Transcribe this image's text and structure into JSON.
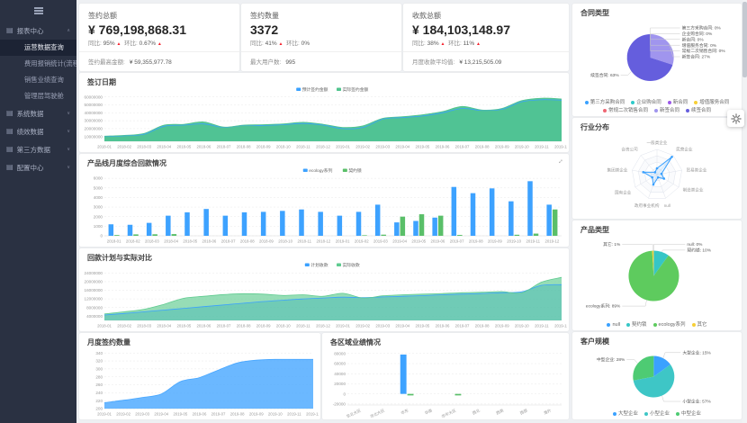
{
  "sidebar": {
    "items": [
      {
        "label": "报表中心",
        "expanded": true,
        "children": [
          {
            "label": "运营数据查询",
            "active": true
          },
          {
            "label": "费用报销统计(流程)",
            "active": false
          },
          {
            "label": "销售业绩查询",
            "active": false
          },
          {
            "label": "管理层驾驶舱",
            "active": false
          }
        ]
      },
      {
        "label": "系统数据",
        "expanded": false
      },
      {
        "label": "绩效数据",
        "expanded": false
      },
      {
        "label": "第三方数据",
        "expanded": false
      },
      {
        "label": "配置中心",
        "expanded": false
      }
    ]
  },
  "kpis": [
    {
      "title": "签约总额",
      "value": "¥ 769,198,868.31",
      "yoy_label": "同比:",
      "yoy": "95%",
      "yoy_arrow": "▲",
      "mom_label": "环比:",
      "mom": "0.67%",
      "mom_arrow": "▲",
      "footer_label": "签约最高金额:",
      "footer_value": "¥ 59,355,977.78"
    },
    {
      "title": "签约数量",
      "value": "3372",
      "yoy_label": "同比:",
      "yoy": "41%",
      "yoy_arrow": "▲",
      "mom_label": "环比:",
      "mom": "0%",
      "mom_arrow": "",
      "footer_label": "最大用户数:",
      "footer_value": "995"
    },
    {
      "title": "收款总额",
      "value": "¥ 184,103,148.97",
      "yoy_label": "同比:",
      "yoy": "38%",
      "yoy_arrow": "▲",
      "mom_label": "环比:",
      "mom": "11%",
      "mom_arrow": "▲",
      "footer_label": "月度收款平均值:",
      "footer_value": "¥ 13,215,505.09"
    }
  ],
  "chart_data": [
    {
      "id": "c1",
      "type": "area",
      "title": "签订日期",
      "x": [
        "2018-01",
        "2018-02",
        "2018-03",
        "2018-04",
        "2018-05",
        "2018-06",
        "2018-07",
        "2018-08",
        "2018-09",
        "2018-10",
        "2018-11",
        "2018-12",
        "2019-01",
        "2019-02",
        "2019-03",
        "2019-04",
        "2019-05",
        "2019-06",
        "2019-07",
        "2019-08",
        "2019-09",
        "2019-10",
        "2019-11",
        "2019-12"
      ],
      "yticks": [
        10000000,
        20000000,
        30000000,
        40000000,
        50000000,
        60000000
      ],
      "ymin": 4000000,
      "ymax": 62000000,
      "series": [
        {
          "name": "预计签约金额",
          "color": "#3aa1ff",
          "fill_opacity": 0.85,
          "values": [
            10000000,
            11000000,
            13000000,
            23000000,
            24500000,
            26000000,
            21500000,
            24000000,
            24000000,
            25000000,
            26500000,
            24500000,
            20000000,
            21500000,
            32000000,
            34000000,
            36000000,
            40000000,
            45500000,
            43000000,
            44500000,
            54000000,
            56500000,
            56000000
          ]
        },
        {
          "name": "实际签约金额",
          "color": "#50c48e",
          "fill_opacity": 0.95,
          "values": [
            10500000,
            11500000,
            14000000,
            24500000,
            25500000,
            28500000,
            22000000,
            24500000,
            25000000,
            26000000,
            28000000,
            25500000,
            21500000,
            23500000,
            33000000,
            35000000,
            37500000,
            41500000,
            48000000,
            43500000,
            45500000,
            55500000,
            58500000,
            57500000
          ]
        }
      ]
    },
    {
      "id": "c2",
      "type": "bar",
      "title": "产品线月度综合回款情况",
      "x": [
        "2018-01",
        "2018-02",
        "2018-03",
        "2018-04",
        "2018-05",
        "2018-06",
        "2018-07",
        "2018-08",
        "2018-09",
        "2018-10",
        "2018-11",
        "2018-12",
        "2019-01",
        "2019-02",
        "2019-03",
        "2019-04",
        "2019-05",
        "2019-06",
        "2019-07",
        "2019-08",
        "2019-09",
        "2019-10",
        "2019-11",
        "2019-12"
      ],
      "yticks": [
        0,
        1000,
        2000,
        3000,
        4000,
        5000,
        6000
      ],
      "ymin": 0,
      "ymax": 6200,
      "series": [
        {
          "name": "ecology系列",
          "color": "#3da2ff",
          "values": [
            1200,
            1150,
            1350,
            2100,
            2450,
            2800,
            2100,
            2450,
            2500,
            2600,
            2750,
            2500,
            2100,
            2500,
            3250,
            1400,
            1550,
            1900,
            5100,
            4450,
            4950,
            3600,
            5700,
            3250
          ]
        },
        {
          "name": "契约锁",
          "color": "#5abf69",
          "values": [
            80,
            150,
            160,
            180,
            0,
            0,
            0,
            0,
            0,
            0,
            0,
            0,
            0,
            60,
            120,
            2000,
            2250,
            2100,
            90,
            0,
            0,
            110,
            230,
            2750
          ]
        }
      ]
    },
    {
      "id": "c3",
      "type": "area",
      "title": "回款计划与实际对比",
      "x": [
        "2018-01",
        "2018-02",
        "2018-03",
        "2018-04",
        "2018-05",
        "2018-06",
        "2018-07",
        "2018-08",
        "2018-09",
        "2018-10",
        "2018-11",
        "2018-12",
        "2019-01",
        "2019-02",
        "2019-03",
        "2019-04",
        "2019-05",
        "2019-06",
        "2019-07",
        "2019-08",
        "2019-09",
        "2019-10",
        "2019-11",
        "2019-12"
      ],
      "yticks": [
        4000000,
        8000000,
        12000000,
        16000000,
        20000000,
        24000000
      ],
      "ymin": 2000000,
      "ymax": 25000000,
      "series": [
        {
          "name": "计划收款",
          "color": "#3aa1ff",
          "fill_opacity": 0.55,
          "values": [
            4500000,
            5200000,
            6000000,
            6800000,
            7600000,
            8400000,
            9200000,
            10000000,
            10800000,
            11400000,
            12000000,
            12400000,
            12800000,
            12600000,
            12900000,
            13200000,
            13500000,
            13900000,
            14200000,
            14500000,
            14900000,
            15300000,
            18300000,
            18600000
          ]
        },
        {
          "name": "实际收款",
          "color": "#5ecb8f",
          "fill_opacity": 0.65,
          "values": [
            5000000,
            6000000,
            7200000,
            9500000,
            12300000,
            13200000,
            14000000,
            14400000,
            14200000,
            13600000,
            13900000,
            13200000,
            14600000,
            12400000,
            13400000,
            13900000,
            14200000,
            14500000,
            14900000,
            15100000,
            15400000,
            14800000,
            19800000,
            22000000
          ]
        }
      ]
    },
    {
      "id": "c4",
      "type": "area",
      "title": "月度签约数量",
      "x": [
        "2019-01",
        "2019-02",
        "2019-03",
        "2019-04",
        "2019-05",
        "2019-06",
        "2019-07",
        "2019-08",
        "2019-09",
        "2019-10",
        "2019-11",
        "2019-12"
      ],
      "yticks": [
        200,
        220,
        240,
        260,
        280,
        300,
        320,
        340
      ],
      "ymin": 200,
      "ymax": 345,
      "series": [
        {
          "name": "月度签约数量",
          "color": "#46a6ff",
          "fill_opacity": 0.8,
          "values": [
            215,
            221,
            228,
            237,
            268,
            278,
            297,
            315,
            322,
            324,
            324,
            324
          ]
        }
      ]
    },
    {
      "id": "c5",
      "type": "bar",
      "title": "各区域业绩情况",
      "rotate_xlabels": true,
      "x": [
        "东北大区",
        "华北大区",
        "华东",
        "华南",
        "华中大区",
        "西北",
        "西南",
        "西部",
        "海外"
      ],
      "yticks": [
        -20000,
        0,
        20000,
        40000,
        60000,
        80000
      ],
      "ymin": -22000,
      "ymax": 85000,
      "legend": false,
      "series": [
        {
          "name": "签约",
          "color": "#3da2ff",
          "values": [
            0,
            0,
            78000,
            0,
            0,
            0,
            0,
            0,
            0
          ]
        },
        {
          "name": "回款",
          "color": "#5abf69",
          "values": [
            0,
            0,
            -3000,
            0,
            -3000,
            0,
            0,
            0,
            0
          ]
        }
      ]
    },
    {
      "id": "p1",
      "type": "pie",
      "title": "合同类型",
      "r": 26,
      "cx_f": 0.46,
      "cy_f": 0.5,
      "slices": [
        {
          "name": "第三方采购合同",
          "pct": "0%",
          "value": 0,
          "color": "#3aa1ff"
        },
        {
          "name": "企业购合同",
          "pct": "0%",
          "value": 0,
          "color": "#2fc9c9"
        },
        {
          "name": "新合同",
          "pct": "0%",
          "value": 0,
          "color": "#9b59e8"
        },
        {
          "name": "增值服务合同",
          "pct": "0%",
          "value": 0,
          "color": "#f7cf36"
        },
        {
          "name": "常规二次销售合同",
          "pct": "0%",
          "value": 0,
          "color": "#ef6673"
        },
        {
          "name": "新签合同",
          "pct": "27%",
          "value": 27,
          "color": "#a095ee"
        },
        {
          "name": "续签合同",
          "pct": "63%",
          "value": 63,
          "color": "#655edd"
        }
      ]
    },
    {
      "id": "r1",
      "type": "radar",
      "title": "行业分布",
      "color": "#3aa1ff",
      "r": 28,
      "axes": [
        "一般类企业",
        "民营企业",
        "贸易类企业",
        "制造类企业",
        "null",
        "政府事业机构",
        "国有企业",
        "集团类企业",
        "合资公司"
      ],
      "values": [
        0.25,
        0.92,
        0.18,
        0.32,
        0.12,
        0.42,
        0.22,
        0.55,
        0.12
      ]
    },
    {
      "id": "p2",
      "type": "pie",
      "title": "产品类型",
      "r": 28,
      "cx_f": 0.48,
      "cy_f": 0.5,
      "slices": [
        {
          "name": "null",
          "pct": "0%",
          "value": 0,
          "color": "#3aa1ff"
        },
        {
          "name": "契约锁",
          "pct": "10%",
          "value": 10,
          "color": "#36c6c6"
        },
        {
          "name": "ecology系列",
          "pct": "89%",
          "value": 89,
          "color": "#5ecb5e"
        },
        {
          "name": "其它",
          "pct": "1%",
          "value": 1,
          "color": "#f7cf36"
        }
      ]
    },
    {
      "id": "p3",
      "type": "pie",
      "title": "客户规模",
      "r": 23,
      "cx_f": 0.48,
      "cy_f": 0.5,
      "slices": [
        {
          "name": "大型企业",
          "pct": "15%",
          "value": 15,
          "color": "#3aa1ff"
        },
        {
          "name": "小型企业",
          "pct": "57%",
          "value": 57,
          "color": "#3ec6c6"
        },
        {
          "name": "中型企业",
          "pct": "28%",
          "value": 28,
          "color": "#4ecb73"
        }
      ]
    }
  ]
}
